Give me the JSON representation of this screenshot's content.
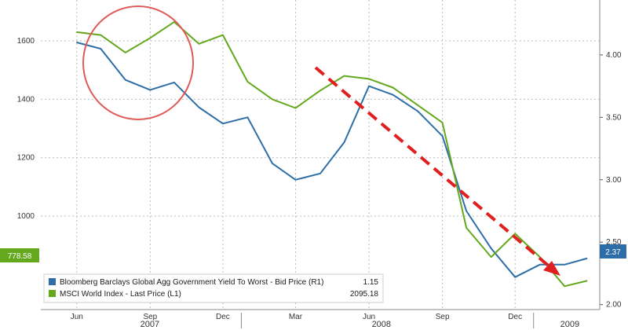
{
  "chart_data": {
    "type": "line",
    "x_ticks": [
      "Jun",
      "Sep",
      "Dec",
      "Mar",
      "Jun",
      "Sep",
      "Dec"
    ],
    "x_years": [
      "2007",
      "2008",
      "2009"
    ],
    "y_left": {
      "ticks": [
        "1600",
        "1400",
        "1200",
        "1000"
      ],
      "range": [
        680,
        1740
      ]
    },
    "y_right": {
      "ticks": [
        "4.00",
        "3.50",
        "3.00",
        "2.50",
        "2.00"
      ],
      "range": [
        1.96,
        4.44
      ]
    },
    "last_values": {
      "left": "778.58",
      "right": "2.37"
    },
    "series": [
      {
        "name": "Bloomberg Barclays Global Agg Government Yield To Worst - Bid Price (R1)",
        "axis": "right",
        "color": "#2e6ea8",
        "last": "1.15",
        "x": [
          "2007-06",
          "2007-07",
          "2007-08",
          "2007-09",
          "2007-10",
          "2007-11",
          "2007-12",
          "2008-01",
          "2008-02",
          "2008-03",
          "2008-04",
          "2008-05",
          "2008-06",
          "2008-07",
          "2008-08",
          "2008-09",
          "2008-10",
          "2008-11",
          "2008-12",
          "2009-01",
          "2009-02",
          "2009-03"
        ],
        "values": [
          4.1,
          4.05,
          3.8,
          3.72,
          3.78,
          3.58,
          3.45,
          3.5,
          3.13,
          3.0,
          3.05,
          3.3,
          3.75,
          3.68,
          3.55,
          3.35,
          2.75,
          2.45,
          2.22,
          2.32,
          2.32,
          2.37
        ]
      },
      {
        "name": "MSCI World Index - Last Price (L1)",
        "axis": "left",
        "color": "#64a81e",
        "last": "2095.18",
        "x": [
          "2007-06",
          "2007-07",
          "2007-08",
          "2007-09",
          "2007-10",
          "2007-11",
          "2007-12",
          "2008-01",
          "2008-02",
          "2008-03",
          "2008-04",
          "2008-05",
          "2008-06",
          "2008-07",
          "2008-08",
          "2008-09",
          "2008-10",
          "2008-11",
          "2008-12",
          "2009-01",
          "2009-02",
          "2009-03"
        ],
        "values": [
          1630,
          1620,
          1560,
          1610,
          1665,
          1590,
          1620,
          1460,
          1400,
          1370,
          1430,
          1480,
          1470,
          1440,
          1380,
          1320,
          960,
          860,
          940,
          860,
          760,
          778.58
        ]
      }
    ]
  }
}
